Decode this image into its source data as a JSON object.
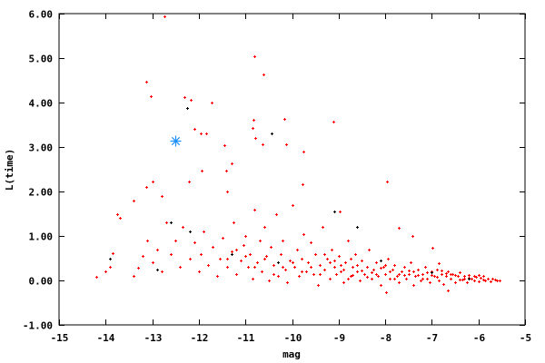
{
  "chart_data": {
    "type": "scatter",
    "title": "",
    "xlabel": "mag",
    "ylabel": "L(time)",
    "xlim": [
      -15,
      -5
    ],
    "ylim": [
      -1,
      6
    ],
    "xticks": [
      -15,
      -14,
      -13,
      -12,
      -11,
      -10,
      -9,
      -8,
      -7,
      -6,
      -5
    ],
    "xtick_labels": [
      "-15",
      "-14",
      "-13",
      "-12",
      "-11",
      "-10",
      "-9",
      "-8",
      "-7",
      "-6",
      "-5"
    ],
    "yticks": [
      -1,
      0,
      1,
      2,
      3,
      4,
      5,
      6
    ],
    "ytick_labels": [
      "-1.00",
      "0.00",
      "1.00",
      "2.00",
      "3.00",
      "4.00",
      "5.00",
      "6.00"
    ],
    "grid": false,
    "legend": "none",
    "series": [
      {
        "color": "#ff0000",
        "marker": "plus",
        "points": [
          [
            -12.74,
            5.94
          ],
          [
            -10.81,
            5.04
          ],
          [
            -10.61,
            4.63
          ],
          [
            -13.13,
            4.47
          ],
          [
            -13.03,
            4.14
          ],
          [
            -12.31,
            4.12
          ],
          [
            -12.17,
            4.06
          ],
          [
            -11.73,
            4.0
          ],
          [
            -10.83,
            3.61
          ],
          [
            -10.17,
            3.63
          ],
          [
            -10.85,
            3.43
          ],
          [
            -12.1,
            3.41
          ],
          [
            -11.96,
            3.31
          ],
          [
            -11.84,
            3.31
          ],
          [
            -9.11,
            3.57
          ],
          [
            -10.79,
            3.2
          ],
          [
            -11.45,
            3.04
          ],
          [
            -10.63,
            3.06
          ],
          [
            -10.13,
            3.06
          ],
          [
            -9.76,
            2.9
          ],
          [
            -11.94,
            2.47
          ],
          [
            -11.41,
            2.47
          ],
          [
            -11.3,
            2.63
          ],
          [
            -12.99,
            2.22
          ],
          [
            -12.21,
            2.22
          ],
          [
            -7.96,
            2.22
          ],
          [
            -13.13,
            2.1
          ],
          [
            -12.8,
            1.9
          ],
          [
            -11.4,
            2.0
          ],
          [
            -9.78,
            2.16
          ],
          [
            -8.98,
            1.55
          ],
          [
            -7.71,
            1.18
          ],
          [
            -7.42,
            1.0
          ],
          [
            -6.99,
            0.73
          ],
          [
            -6.85,
            0.39
          ],
          [
            -7.99,
            -0.27
          ],
          [
            -6.66,
            -0.22
          ],
          [
            -13.7,
            1.4
          ],
          [
            -13.75,
            1.5
          ],
          [
            -13.4,
            1.8
          ],
          [
            -14.2,
            0.08
          ],
          [
            -14.0,
            0.2
          ],
          [
            -13.9,
            0.3
          ],
          [
            -13.85,
            0.62
          ],
          [
            -13.4,
            0.1
          ],
          [
            -13.3,
            0.28
          ],
          [
            -13.2,
            0.55
          ],
          [
            -13.1,
            0.9
          ],
          [
            -13.0,
            0.4
          ],
          [
            -12.9,
            0.7
          ],
          [
            -12.8,
            0.2
          ],
          [
            -12.7,
            1.3
          ],
          [
            -12.6,
            0.6
          ],
          [
            -12.5,
            0.9
          ],
          [
            -12.4,
            0.3
          ],
          [
            -12.35,
            1.2
          ],
          [
            -12.2,
            0.5
          ],
          [
            -12.1,
            0.85
          ],
          [
            -12.0,
            0.2
          ],
          [
            -11.95,
            0.6
          ],
          [
            -11.9,
            1.1
          ],
          [
            -11.8,
            0.35
          ],
          [
            -11.7,
            0.75
          ],
          [
            -11.6,
            0.1
          ],
          [
            -11.55,
            0.5
          ],
          [
            -11.5,
            0.95
          ],
          [
            -11.4,
            0.3
          ],
          [
            -11.3,
            0.65
          ],
          [
            -11.25,
            1.3
          ],
          [
            -11.2,
            0.15
          ],
          [
            -11.1,
            0.45
          ],
          [
            -11.05,
            0.8
          ],
          [
            -11.0,
            1.0
          ],
          [
            -10.95,
            0.3
          ],
          [
            -10.9,
            0.6
          ],
          [
            -10.85,
            0.05
          ],
          [
            -10.8,
            1.6
          ],
          [
            -10.75,
            0.4
          ],
          [
            -10.7,
            0.9
          ],
          [
            -10.65,
            0.2
          ],
          [
            -10.6,
            1.2
          ],
          [
            -10.55,
            0.55
          ],
          [
            -10.5,
            0.0
          ],
          [
            -10.45,
            0.75
          ],
          [
            -10.4,
            0.35
          ],
          [
            -10.35,
            1.5
          ],
          [
            -10.3,
            0.1
          ],
          [
            -10.25,
            0.6
          ],
          [
            -10.2,
            0.9
          ],
          [
            -10.15,
            0.25
          ],
          [
            -10.1,
            -0.05
          ],
          [
            -10.05,
            0.45
          ],
          [
            -10.0,
            1.7
          ],
          [
            -9.95,
            0.3
          ],
          [
            -9.9,
            0.7
          ],
          [
            -9.85,
            0.1
          ],
          [
            -9.8,
            0.5
          ],
          [
            -9.75,
            1.05
          ],
          [
            -9.7,
            0.2
          ],
          [
            -9.65,
            0.4
          ],
          [
            -9.6,
            0.85
          ],
          [
            -9.55,
            0.15
          ],
          [
            -9.5,
            0.6
          ],
          [
            -9.45,
            -0.1
          ],
          [
            -9.4,
            0.35
          ],
          [
            -9.35,
            1.2
          ],
          [
            -9.3,
            0.25
          ],
          [
            -9.25,
            0.5
          ],
          [
            -9.2,
            0.05
          ],
          [
            -9.15,
            0.7
          ],
          [
            -9.1,
            0.3
          ],
          [
            -9.05,
            0.15
          ],
          [
            -9.0,
            0.55
          ],
          [
            -8.95,
            0.2
          ],
          [
            -8.9,
            -0.05
          ],
          [
            -8.85,
            0.4
          ],
          [
            -8.8,
            0.9
          ],
          [
            -8.75,
            0.1
          ],
          [
            -8.7,
            0.3
          ],
          [
            -8.65,
            0.6
          ],
          [
            -8.6,
            0.2
          ],
          [
            -8.55,
            0.0
          ],
          [
            -8.5,
            0.45
          ],
          [
            -8.45,
            0.15
          ],
          [
            -8.4,
            0.3
          ],
          [
            -8.35,
            0.7
          ],
          [
            -8.3,
            0.05
          ],
          [
            -8.25,
            0.25
          ],
          [
            -8.2,
            0.4
          ],
          [
            -8.15,
            0.1
          ],
          [
            -8.1,
            -0.1
          ],
          [
            -8.05,
            0.3
          ],
          [
            -8.0,
            0.15
          ],
          [
            -7.95,
            0.5
          ],
          [
            -7.9,
            0.05
          ],
          [
            -7.85,
            0.25
          ],
          [
            -7.8,
            0.35
          ],
          [
            -7.75,
            0.1
          ],
          [
            -7.7,
            -0.05
          ],
          [
            -7.65,
            0.2
          ],
          [
            -7.6,
            0.3
          ],
          [
            -7.55,
            0.05
          ],
          [
            -7.5,
            0.15
          ],
          [
            -7.45,
            0.4
          ],
          [
            -7.4,
            -0.1
          ],
          [
            -7.35,
            0.1
          ],
          [
            -7.3,
            0.25
          ],
          [
            -7.25,
            0.0
          ],
          [
            -7.2,
            0.15
          ],
          [
            -7.15,
            0.3
          ],
          [
            -7.1,
            0.05
          ],
          [
            -7.05,
            -0.05
          ],
          [
            -7.0,
            0.2
          ],
          [
            -6.95,
            0.1
          ],
          [
            -6.9,
            0.25
          ],
          [
            -6.85,
            0.0
          ],
          [
            -6.8,
            0.15
          ],
          [
            -6.75,
            -0.08
          ],
          [
            -6.7,
            0.1
          ],
          [
            -6.65,
            0.2
          ],
          [
            -6.6,
            0.05
          ],
          [
            -6.55,
            0.15
          ],
          [
            -6.5,
            -0.05
          ],
          [
            -6.45,
            0.1
          ],
          [
            -6.4,
            0.18
          ],
          [
            -6.35,
            0.02
          ],
          [
            -6.3,
            0.1
          ],
          [
            -6.25,
            -0.04
          ],
          [
            -6.2,
            0.12
          ],
          [
            -6.15,
            0.05
          ],
          [
            -6.1,
            0.0
          ],
          [
            -6.05,
            0.08
          ],
          [
            -6.0,
            -0.03
          ],
          [
            -5.95,
            0.06
          ],
          [
            -5.9,
            0.1
          ],
          [
            -5.85,
            0.0
          ],
          [
            -5.8,
            0.05
          ],
          [
            -5.75,
            -0.02
          ],
          [
            -5.7,
            0.04
          ],
          [
            -5.65,
            0.02
          ],
          [
            -5.6,
            0.0
          ],
          [
            -5.55,
            0.01
          ],
          [
            -8.9,
            0.25
          ],
          [
            -8.7,
            0.12
          ],
          [
            -8.5,
            0.22
          ],
          [
            -8.3,
            0.18
          ],
          [
            -8.1,
            0.28
          ],
          [
            -7.9,
            0.2
          ],
          [
            -7.7,
            0.15
          ],
          [
            -7.5,
            0.22
          ],
          [
            -7.3,
            0.12
          ],
          [
            -7.1,
            0.18
          ],
          [
            -6.9,
            0.08
          ],
          [
            -6.7,
            0.16
          ],
          [
            -6.5,
            0.12
          ],
          [
            -6.3,
            0.05
          ],
          [
            -6.1,
            0.1
          ],
          [
            -5.9,
            0.03
          ],
          [
            -8.8,
            0.05
          ],
          [
            -8.6,
            0.35
          ],
          [
            -8.4,
            0.08
          ],
          [
            -8.2,
            0.15
          ],
          [
            -8.0,
            0.35
          ],
          [
            -7.8,
            0.05
          ],
          [
            -7.6,
            0.12
          ],
          [
            -7.4,
            0.2
          ],
          [
            -7.2,
            0.05
          ],
          [
            -7.0,
            0.12
          ],
          [
            -6.8,
            0.22
          ],
          [
            -6.6,
            0.15
          ],
          [
            -6.4,
            0.02
          ],
          [
            -6.2,
            0.06
          ],
          [
            -6.0,
            0.12
          ],
          [
            -9.2,
            0.4
          ],
          [
            -9.4,
            0.15
          ],
          [
            -9.6,
            0.3
          ],
          [
            -9.8,
            0.2
          ],
          [
            -10.0,
            0.4
          ],
          [
            -10.2,
            0.3
          ],
          [
            -10.4,
            0.15
          ],
          [
            -10.6,
            0.5
          ],
          [
            -10.8,
            0.3
          ],
          [
            -11.0,
            0.55
          ],
          [
            -11.2,
            0.7
          ],
          [
            -11.4,
            0.5
          ],
          [
            -9.3,
            0.6
          ],
          [
            -9.1,
            0.45
          ],
          [
            -8.95,
            0.35
          ],
          [
            -8.75,
            0.5
          ]
        ]
      },
      {
        "color": "#000000",
        "marker": "plus",
        "points": [
          [
            -12.25,
            3.88
          ],
          [
            -10.44,
            3.31
          ],
          [
            -12.6,
            1.3
          ],
          [
            -12.2,
            1.1
          ],
          [
            -11.3,
            0.6
          ],
          [
            -10.3,
            0.4
          ],
          [
            -9.1,
            1.55
          ],
          [
            -8.6,
            1.2
          ],
          [
            -8.1,
            0.45
          ],
          [
            -7.0,
            0.18
          ],
          [
            -6.2,
            0.05
          ],
          [
            -13.9,
            0.5
          ],
          [
            -12.9,
            0.25
          ]
        ]
      },
      {
        "color": "#1e90ff",
        "marker": "star",
        "points": [
          [
            -12.5,
            3.14
          ]
        ]
      }
    ]
  }
}
